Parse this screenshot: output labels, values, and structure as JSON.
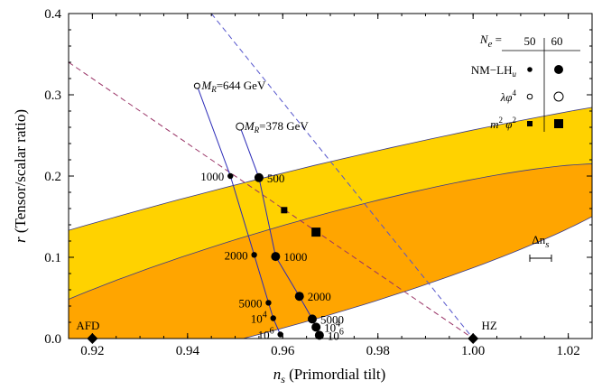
{
  "chart_data": {
    "type": "scatter",
    "xlim": [
      0.915,
      1.025
    ],
    "ylim": [
      0.0,
      0.4
    ],
    "xlabel": {
      "var": "n",
      "sub": "s",
      "rest": " (Primordial tilt)"
    },
    "ylabel": {
      "var": "r",
      "rest": " (Tensor/scalar ratio)"
    },
    "xticks": [
      0.92,
      0.94,
      0.96,
      0.98,
      1.0,
      1.02
    ],
    "xtick_labels": [
      "0.92",
      "0.94",
      "0.96",
      "0.98",
      "1.00",
      "1.02"
    ],
    "yticks": [
      0.0,
      0.1,
      0.2,
      0.3,
      0.4
    ],
    "ytick_labels": [
      "0.0",
      "0.1",
      "0.2",
      "0.3",
      "0.4"
    ],
    "regions": [
      {
        "name": "outer contour",
        "color": "#FFD200",
        "cx": 0.9615,
        "cy": 0.13,
        "rx": 0.0415,
        "ry": 0.215,
        "rot": 31.5
      },
      {
        "name": "inner contour",
        "color": "#FFA500",
        "cx": 0.9637,
        "cy": 0.082,
        "rx": 0.0305,
        "ry": 0.148,
        "rot": 26.5
      }
    ],
    "dashed_lines": [
      {
        "color": "#5555cc",
        "x": [
          0.945,
          1.0
        ],
        "y": [
          0.4,
          0.0
        ]
      },
      {
        "color": "#993366",
        "x": [
          0.915,
          1.0
        ],
        "y": [
          0.34,
          0.0
        ]
      }
    ],
    "nm_lhu_50": {
      "x": [
        0.942,
        0.949,
        0.954,
        0.957,
        0.958,
        0.9595
      ],
      "y": [
        0.311,
        0.2,
        0.103,
        0.044,
        0.025,
        0.005
      ],
      "labels": [
        "",
        "1000",
        "2000",
        "5000",
        "10^4",
        "10^6"
      ]
    },
    "nm_lhu_60": {
      "x": [
        0.951,
        0.955,
        0.9585,
        0.9635,
        0.9662,
        0.967,
        0.9677
      ],
      "y": [
        0.261,
        0.198,
        0.101,
        0.052,
        0.024,
        0.014,
        0.004
      ],
      "labels": [
        "",
        "500",
        "1000",
        "2000",
        "5000",
        "10^4",
        "10^6"
      ]
    },
    "mass_labels": [
      {
        "sym": "M",
        "sub": "R",
        "val": "=644 GeV",
        "x": 0.942,
        "y": 0.311
      },
      {
        "sym": "M",
        "sub": "R",
        "val": "=378 GeV",
        "x": 0.951,
        "y": 0.261
      }
    ],
    "m2phi2_points": [
      {
        "x": 0.9603,
        "y": 0.158,
        "size": "small"
      },
      {
        "x": 0.967,
        "y": 0.131,
        "size": "large"
      }
    ],
    "diamonds": [
      {
        "label": "AFD",
        "x": 0.92,
        "y": 0.0
      },
      {
        "label": "HZ",
        "x": 1.0,
        "y": 0.0
      }
    ],
    "delta_ns_label": {
      "main": "Δn",
      "sub": "s"
    },
    "legend": {
      "header": {
        "sym": "N",
        "sub": "e",
        "eq": " =",
        "c1": "50",
        "c2": "60"
      },
      "rows": [
        {
          "label": "NM−LH",
          "sub": "u",
          "marker": "filled-circle"
        },
        {
          "label": "λφ",
          "sup": "4",
          "marker": "open-circle"
        },
        {
          "label": "m",
          "sup": "2",
          "tail": " φ",
          "sup2": "2",
          "marker": "filled-square"
        }
      ]
    }
  }
}
